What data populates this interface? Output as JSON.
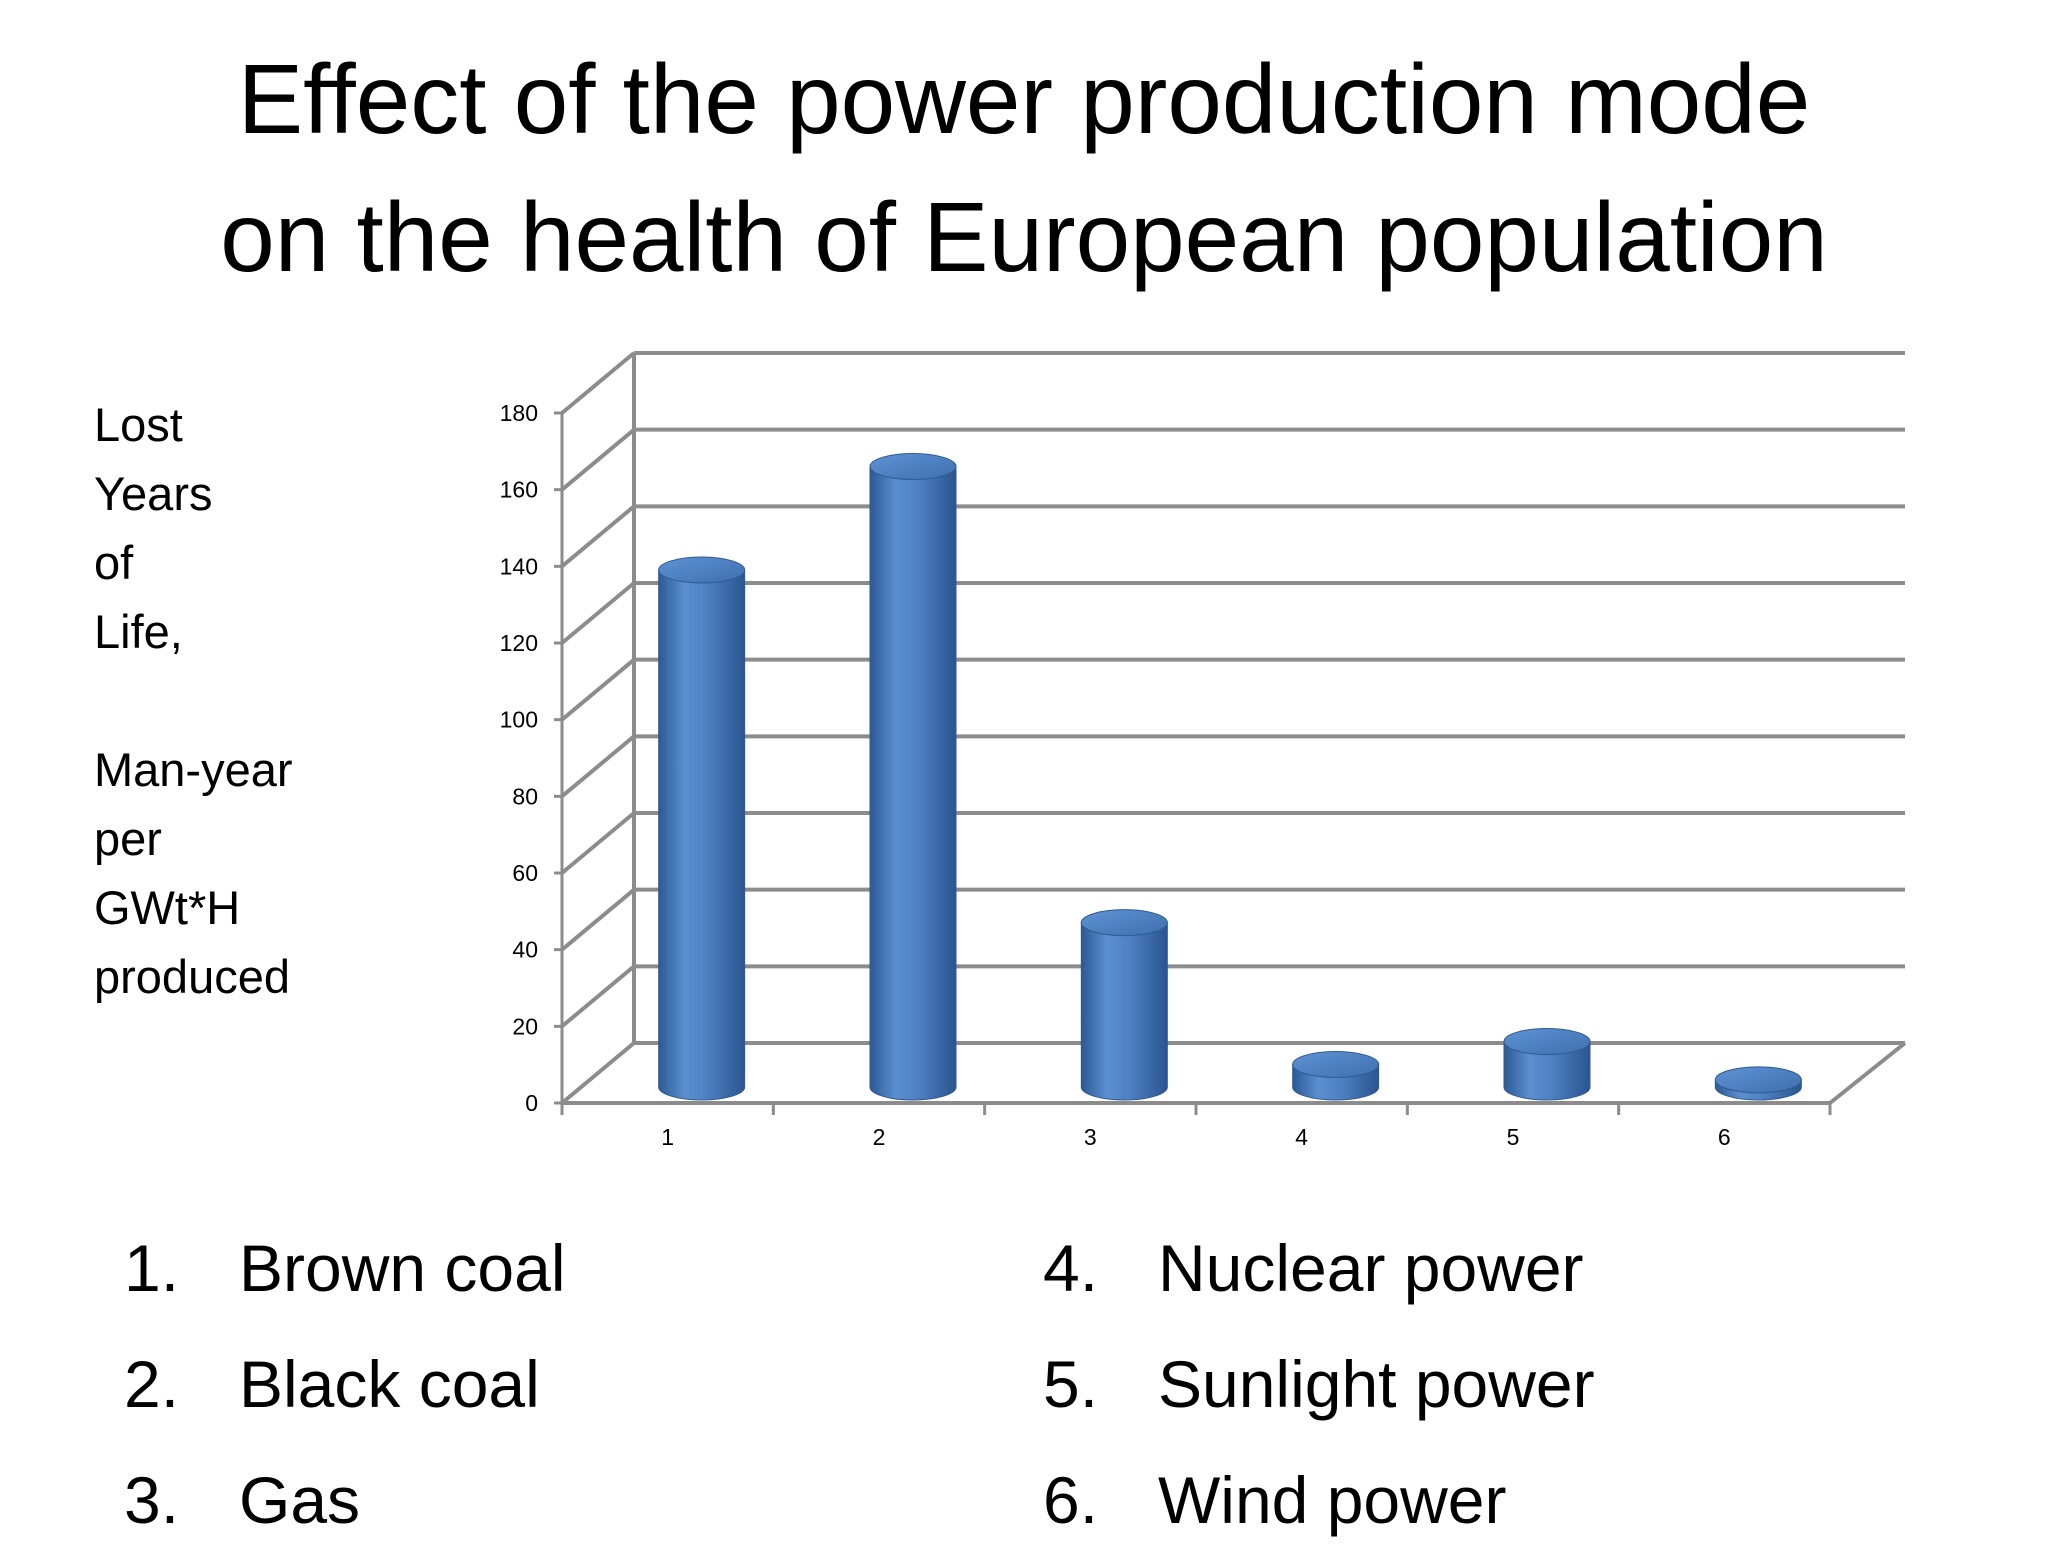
{
  "title_lines": [
    "Effect of the power production mode",
    "on the health of European population"
  ],
  "ylabel_lines": [
    "Lost",
    "Years",
    "of",
    "Life,",
    "",
    "Man-year",
    "per",
    "GWt*H",
    "produced"
  ],
  "legend": [
    {
      "num": "1.",
      "label": "Brown coal"
    },
    {
      "num": "2.",
      "label": "Black coal"
    },
    {
      "num": "3.",
      "label": "Gas"
    },
    {
      "num": "4.",
      "label": "Nuclear power"
    },
    {
      "num": "5.",
      "label": "Sunlight power"
    },
    {
      "num": "6.",
      "label": "Wind power"
    }
  ],
  "colors": {
    "bar": "#4f81bd",
    "bar_dark": "#2f5a92",
    "grid": "#8c8c8c"
  },
  "chart_data": {
    "type": "bar",
    "categories": [
      "1",
      "2",
      "3",
      "4",
      "5",
      "6"
    ],
    "values": [
      138,
      165,
      46,
      9,
      15,
      5
    ],
    "yticks": [
      0,
      20,
      40,
      60,
      80,
      100,
      120,
      140,
      160,
      180
    ],
    "ylim": [
      0,
      180
    ],
    "grid": true
  }
}
